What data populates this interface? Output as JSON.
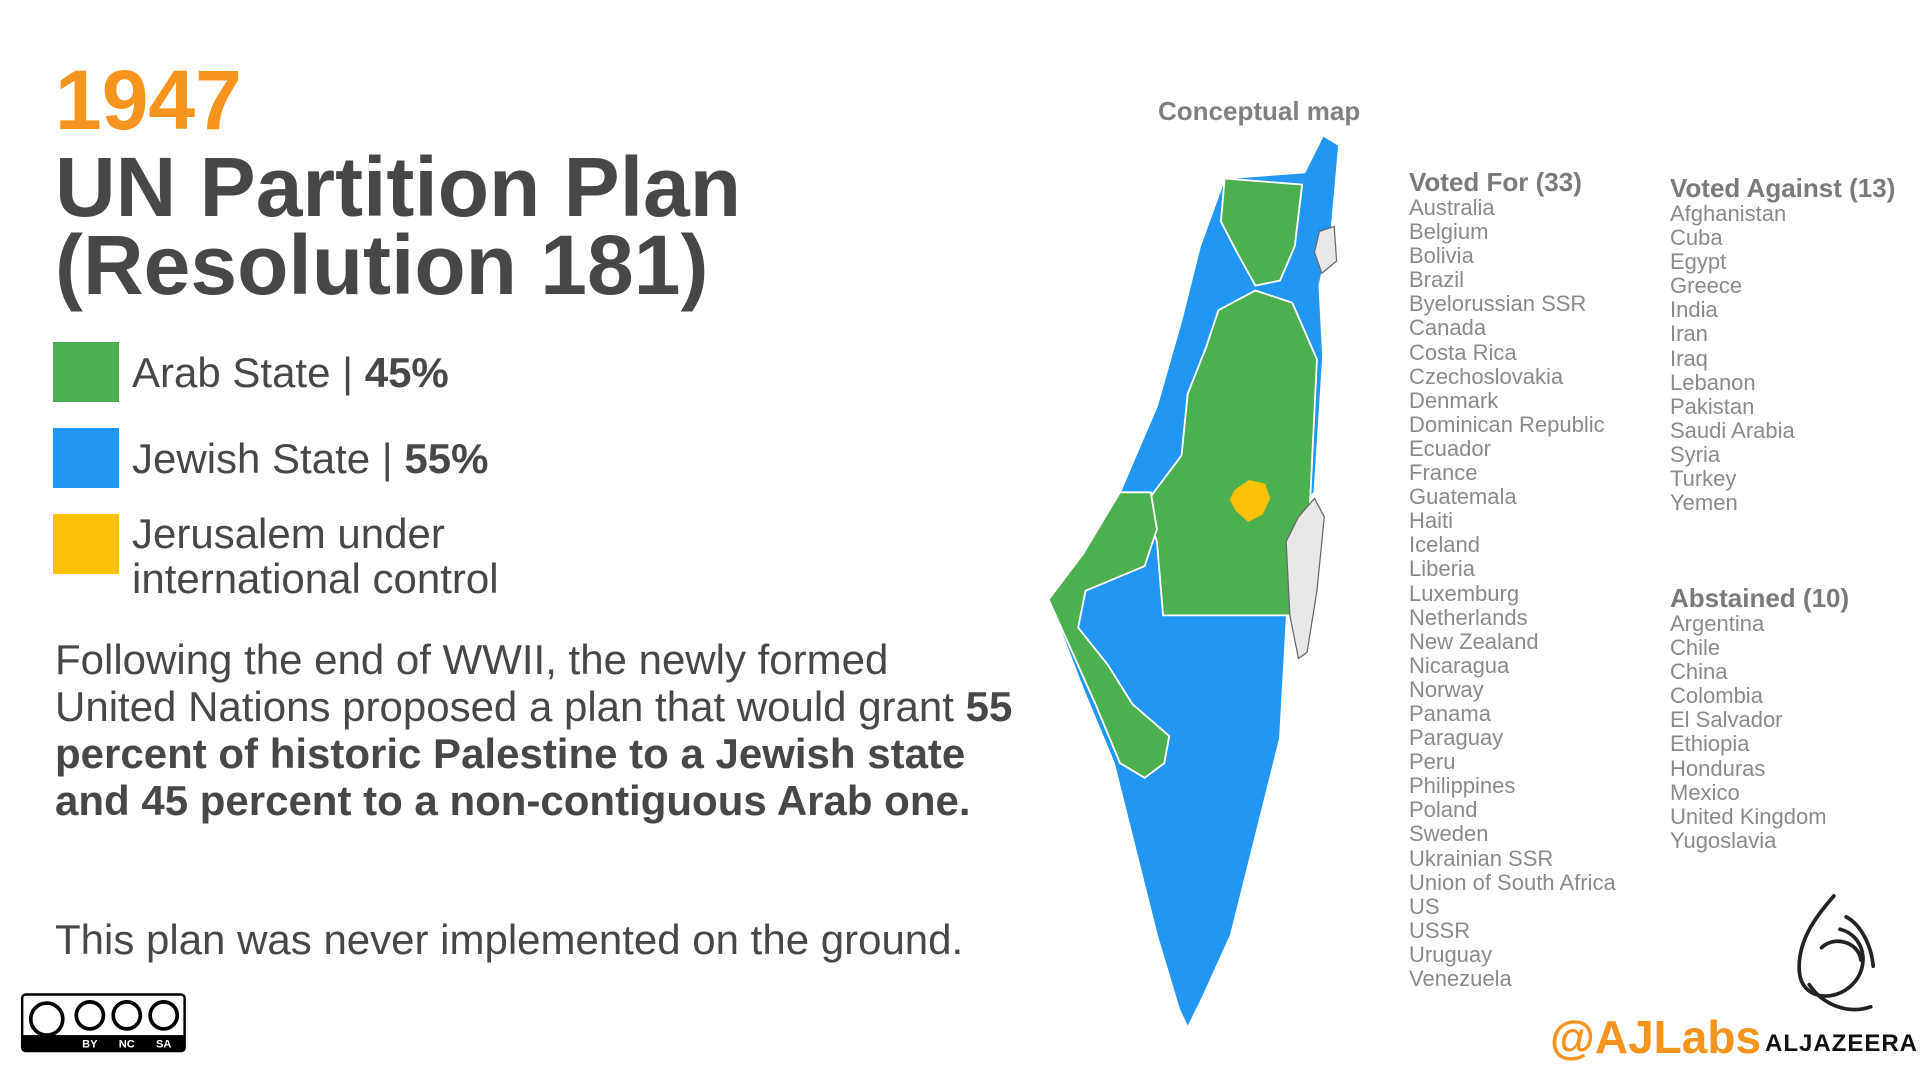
{
  "header": {
    "year": "1947",
    "title_line1": "UN Partition Plan",
    "title_line2": "(Resolution 181)"
  },
  "legend": [
    {
      "label": "Arab State |",
      "share": "45%",
      "color": "#4caf50"
    },
    {
      "label": "Jewish State |",
      "share": "55%",
      "color": "#2196f3"
    },
    {
      "label": "Jerusalem under international control",
      "color": "#ffc107"
    }
  ],
  "description": {
    "lead": "Following the end of WWII, the newly formed United Nations proposed a plan that would grant",
    "emphasis": "55 percent of historic Palestine to a Jewish state and 45 percent to a non-contiguous Arab one.",
    "note": "This plan was never implemented on the ground."
  },
  "map": {
    "title": "Conceptual map"
  },
  "votes": {
    "for": {
      "title": "Voted For (33)",
      "countries": [
        "Australia",
        "Belgium",
        "Bolivia",
        "Brazil",
        "Byelorussian SSR",
        "Canada",
        "Costa Rica",
        "Czechoslovakia",
        "Denmark",
        "Dominican Republic",
        "Ecuador",
        "France",
        "Guatemala",
        "Haiti",
        "Iceland",
        "Liberia",
        "Luxemburg",
        "Netherlands",
        "New Zealand",
        "Nicaragua",
        "Norway",
        "Panama",
        "Paraguay",
        "Peru",
        "Philippines",
        "Poland",
        "Sweden",
        "Ukrainian SSR",
        "Union of South Africa",
        "US",
        "USSR",
        "Uruguay",
        "Venezuela"
      ]
    },
    "against": {
      "title": "Voted Against (13)",
      "countries": [
        "Afghanistan",
        "Cuba",
        "Egypt",
        "Greece",
        "India",
        "Iran",
        "Iraq",
        "Lebanon",
        "Pakistan",
        "Saudi Arabia",
        "Syria",
        "Turkey",
        "Yemen"
      ]
    },
    "abstained": {
      "title": "Abstained (10)",
      "countries": [
        "Argentina",
        "Chile",
        "China",
        "Colombia",
        "El Salvador",
        "Ethiopia",
        "Honduras",
        "Mexico",
        "United Kingdom",
        "Yugoslavia"
      ]
    }
  },
  "footer": {
    "license": [
      "BY",
      "NC",
      "SA"
    ],
    "handle": "@AJLabs",
    "brand": "ALJAZEERA"
  }
}
